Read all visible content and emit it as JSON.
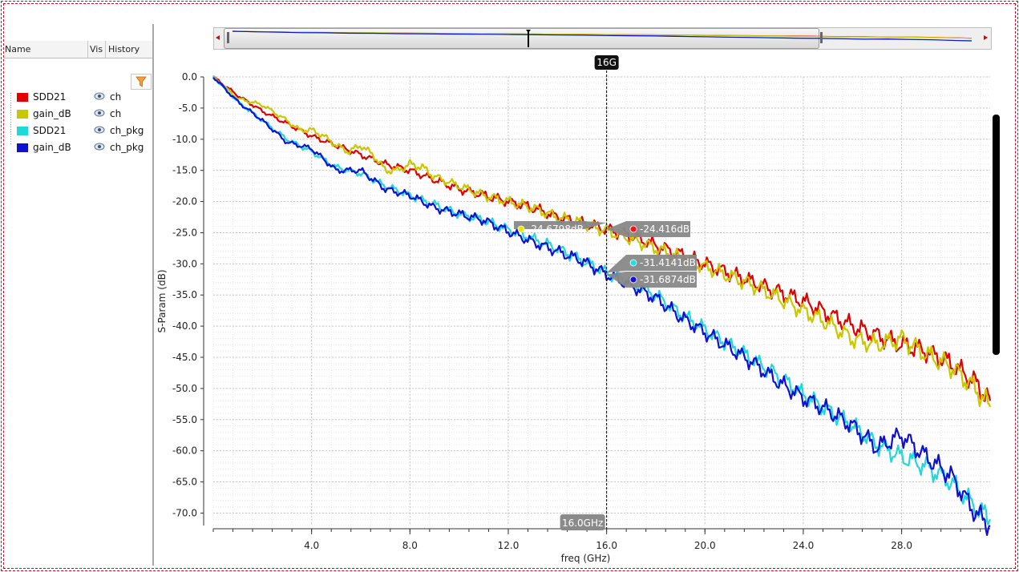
{
  "sidebar": {
    "headers": {
      "name": "Name",
      "vis": "Vis",
      "history": "History"
    },
    "items": [
      {
        "name": "SDD21",
        "history": "ch",
        "color": "#e00000"
      },
      {
        "name": "gain_dB",
        "history": "ch",
        "color": "#c8c800"
      },
      {
        "name": "SDD21",
        "history": "ch_pkg",
        "color": "#20d8d8"
      },
      {
        "name": "gain_dB",
        "history": "ch_pkg",
        "color": "#1010d0"
      }
    ]
  },
  "cursor": {
    "tag": "16G",
    "x_label": "16.0GHz",
    "x_value": 16.0
  },
  "markers": [
    {
      "label": "-24.6798dB",
      "value": -24.6798,
      "color": "#e8e800"
    },
    {
      "label": "-24.416dB",
      "value": -24.416,
      "color": "#ff1010"
    },
    {
      "label": "-31.4141dB",
      "value": -31.4141,
      "color": "#20e0e0"
    },
    {
      "label": "-31.6874dB",
      "value": -31.6874,
      "color": "#1010e0"
    }
  ],
  "chart_data": {
    "type": "line",
    "xlabel": "freq (GHz)",
    "ylabel": "S-Param (dB)",
    "xlim": [
      0,
      31.6
    ],
    "ylim": [
      -72,
      0
    ],
    "xticks": [
      4.0,
      8.0,
      12.0,
      16.0,
      20.0,
      24.0,
      28.0
    ],
    "xtick_labels": [
      "4.0",
      "8.0",
      "12.0",
      "16.0",
      "20.0",
      "24.0",
      "28.0"
    ],
    "yticks": [
      0,
      -5,
      -10,
      -15,
      -20,
      -25,
      -30,
      -35,
      -40,
      -45,
      -50,
      -55,
      -60,
      -65,
      -70
    ],
    "ytick_labels": [
      "0.0",
      "-5.0",
      "-10.0",
      "-15.0",
      "-20.0",
      "-25.0",
      "-30.0",
      "-35.0",
      "-40.0",
      "-45.0",
      "-50.0",
      "-55.0",
      "-60.0",
      "-65.0",
      "-70.0"
    ],
    "grid": true,
    "series": [
      {
        "name": "SDD21",
        "history": "ch",
        "color": "#e00000",
        "x": [
          0,
          1,
          2,
          3,
          4,
          5,
          6,
          7,
          8,
          9,
          10,
          11,
          12,
          13,
          14,
          15,
          16,
          17,
          18,
          19,
          20,
          21,
          22,
          23,
          24,
          25,
          26,
          27,
          28,
          29,
          30,
          31,
          31.6
        ],
        "values": [
          0,
          -3,
          -5.5,
          -7.5,
          -9.5,
          -11,
          -12.5,
          -14,
          -15,
          -16.5,
          -18,
          -19,
          -20,
          -21,
          -22.5,
          -23.5,
          -24.4,
          -25.5,
          -27,
          -28.5,
          -30,
          -31.5,
          -33,
          -34.5,
          -36,
          -38,
          -40,
          -41.5,
          -43,
          -44,
          -46,
          -49,
          -52
        ]
      },
      {
        "name": "gain_dB",
        "history": "ch",
        "color": "#c8c800",
        "x": [
          0,
          1,
          2,
          3,
          3.5,
          4,
          4.5,
          5,
          5.5,
          6,
          6.5,
          7,
          7.5,
          8,
          8.5,
          9,
          10,
          11,
          12,
          13,
          14,
          15,
          16,
          17,
          18,
          19,
          20,
          21,
          22,
          23,
          24,
          25,
          26,
          27,
          28,
          29,
          30,
          31,
          31.6
        ],
        "values": [
          0,
          -3.5,
          -4.5,
          -7,
          -8.5,
          -8.5,
          -9.5,
          -11,
          -12,
          -11,
          -12.5,
          -15,
          -15,
          -14,
          -14.5,
          -16,
          -17.5,
          -19,
          -20,
          -21,
          -22.5,
          -23.5,
          -24.7,
          -26,
          -27.5,
          -29,
          -30.5,
          -32,
          -33.5,
          -35.5,
          -37.5,
          -39.5,
          -42,
          -43,
          -42,
          -44.5,
          -46.5,
          -50,
          -53
        ]
      },
      {
        "name": "SDD21",
        "history": "ch_pkg",
        "color": "#20d8d8",
        "x": [
          0,
          1,
          2,
          3,
          4,
          5,
          6,
          7,
          8,
          9,
          10,
          11,
          12,
          13,
          14,
          15,
          16,
          17,
          18,
          19,
          20,
          21,
          22,
          23,
          24,
          25,
          26,
          27,
          28,
          29,
          30,
          31,
          31.6
        ],
        "values": [
          0,
          -4,
          -7,
          -10,
          -12,
          -14.5,
          -15.5,
          -17.5,
          -19,
          -20.5,
          -22,
          -23,
          -24.5,
          -26,
          -27.5,
          -29.5,
          -31.4,
          -33,
          -35,
          -38,
          -40.5,
          -43,
          -45.5,
          -48,
          -51,
          -53.5,
          -56,
          -59,
          -61,
          -62.5,
          -65,
          -69,
          -71
        ]
      },
      {
        "name": "gain_dB",
        "history": "ch_pkg",
        "color": "#1010d0",
        "x": [
          0,
          1,
          2,
          3,
          4,
          5,
          6,
          7,
          8,
          9,
          10,
          11,
          12,
          13,
          14,
          15,
          16,
          17,
          18,
          19,
          20,
          21,
          22,
          23,
          24,
          25,
          26,
          27,
          28,
          29,
          30,
          31,
          31.6
        ],
        "values": [
          0,
          -4,
          -7,
          -10.5,
          -11.5,
          -15,
          -15,
          -18,
          -19,
          -21,
          -22,
          -23,
          -24.8,
          -26.5,
          -28,
          -29.5,
          -31.7,
          -33.5,
          -35.5,
          -38.5,
          -41,
          -43.5,
          -46,
          -49,
          -51.5,
          -53.5,
          -56,
          -59.5,
          -57.5,
          -61,
          -64,
          -70,
          -72
        ]
      }
    ]
  }
}
